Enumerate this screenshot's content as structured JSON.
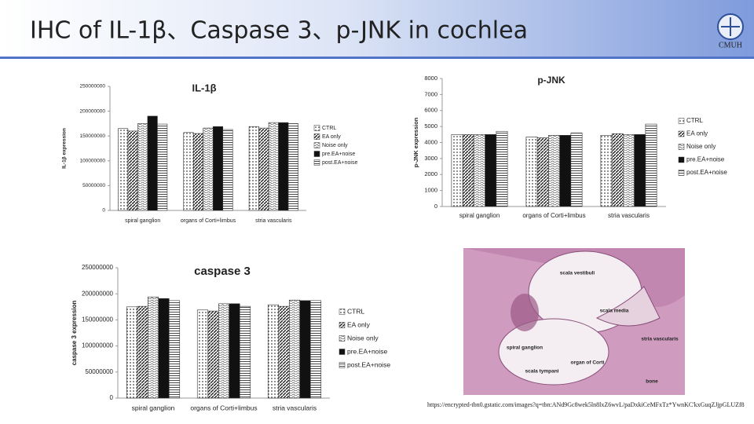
{
  "slide": {
    "title": "IHC of IL-1β、Caspase 3、p-JNK in cochlea",
    "logo": "CMUH"
  },
  "chart_data": [
    {
      "type": "bar",
      "title": "IL-1β",
      "y_label": "IL-1β expression",
      "categories": [
        "spiral ganglion",
        "organs of Corti+limbus",
        "stria vascularis"
      ],
      "ylim": [
        0,
        250000000
      ],
      "yticks": [
        0,
        50000000,
        100000000,
        150000000,
        200000000,
        250000000
      ],
      "series": [
        {
          "name": "CTRL",
          "color": "#e6e6e6",
          "pattern": "dots",
          "values": [
            165000000,
            157000000,
            169000000
          ]
        },
        {
          "name": "EA only",
          "color": "#9a9a9a",
          "pattern": "diag",
          "values": [
            160000000,
            155000000,
            166000000
          ]
        },
        {
          "name": "Noise only",
          "color": "#dddddd",
          "pattern": "wave",
          "values": [
            175000000,
            166000000,
            177000000
          ]
        },
        {
          "name": "pre.EA+noise",
          "color": "#111111",
          "pattern": "solid",
          "values": [
            190000000,
            169000000,
            177000000
          ]
        },
        {
          "name": "post.EA+noise",
          "color": "#c8c8c8",
          "pattern": "hlines",
          "values": [
            174000000,
            163000000,
            175000000
          ]
        }
      ]
    },
    {
      "type": "bar",
      "title": "p-JNK",
      "y_label": "p-JNK expression",
      "categories": [
        "spiral ganglion",
        "organs of Corti+limbus",
        "stria vascularis"
      ],
      "ylim": [
        0,
        8000
      ],
      "yticks": [
        0,
        1000,
        2000,
        3000,
        4000,
        5000,
        6000,
        7000,
        8000
      ],
      "series": [
        {
          "name": "CTRL",
          "color": "#e6e6e6",
          "pattern": "dots",
          "values": [
            4500,
            4350,
            4450
          ]
        },
        {
          "name": "EA only",
          "color": "#9a9a9a",
          "pattern": "diag",
          "values": [
            4500,
            4300,
            4550
          ]
        },
        {
          "name": "Noise only",
          "color": "#dddddd",
          "pattern": "wave",
          "values": [
            4500,
            4450,
            4500
          ]
        },
        {
          "name": "pre.EA+noise",
          "color": "#111111",
          "pattern": "solid",
          "values": [
            4500,
            4450,
            4500
          ]
        },
        {
          "name": "post.EA+noise",
          "color": "#c8c8c8",
          "pattern": "hlines",
          "values": [
            4700,
            4600,
            5150
          ]
        }
      ]
    },
    {
      "type": "bar",
      "title": "caspase 3",
      "y_label": "caspase 3 expression",
      "categories": [
        "spiral ganglion",
        "organs of Corti+limbus",
        "stria vascularis"
      ],
      "ylim": [
        0,
        250000000
      ],
      "yticks": [
        0,
        50000000,
        100000000,
        150000000,
        200000000,
        250000000
      ],
      "series": [
        {
          "name": "CTRL",
          "color": "#e6e6e6",
          "pattern": "dots",
          "values": [
            175000000,
            169000000,
            179000000
          ]
        },
        {
          "name": "EA only",
          "color": "#9a9a9a",
          "pattern": "diag",
          "values": [
            176000000,
            167000000,
            176000000
          ]
        },
        {
          "name": "Noise only",
          "color": "#dddddd",
          "pattern": "wave",
          "values": [
            194000000,
            181000000,
            188000000
          ]
        },
        {
          "name": "pre.EA+noise",
          "color": "#111111",
          "pattern": "solid",
          "values": [
            191000000,
            181000000,
            187000000
          ]
        },
        {
          "name": "post.EA+noise",
          "color": "#c8c8c8",
          "pattern": "hlines",
          "values": [
            187000000,
            176000000,
            187000000
          ]
        }
      ]
    }
  ],
  "image": {
    "labels": [
      "scala vestibuli",
      "scala media",
      "stria vascularis",
      "spiral ganglion",
      "organ of Corti",
      "scala tympani",
      "bone"
    ],
    "caption": "https://encrypted-tbn0.gstatic.com/images?q=tbn:ANd9Gc8wek5ln8lxZ6wvL/paDxkiCeMFxTz*YwnKC'kxGuqZJjpGLUZf8"
  }
}
